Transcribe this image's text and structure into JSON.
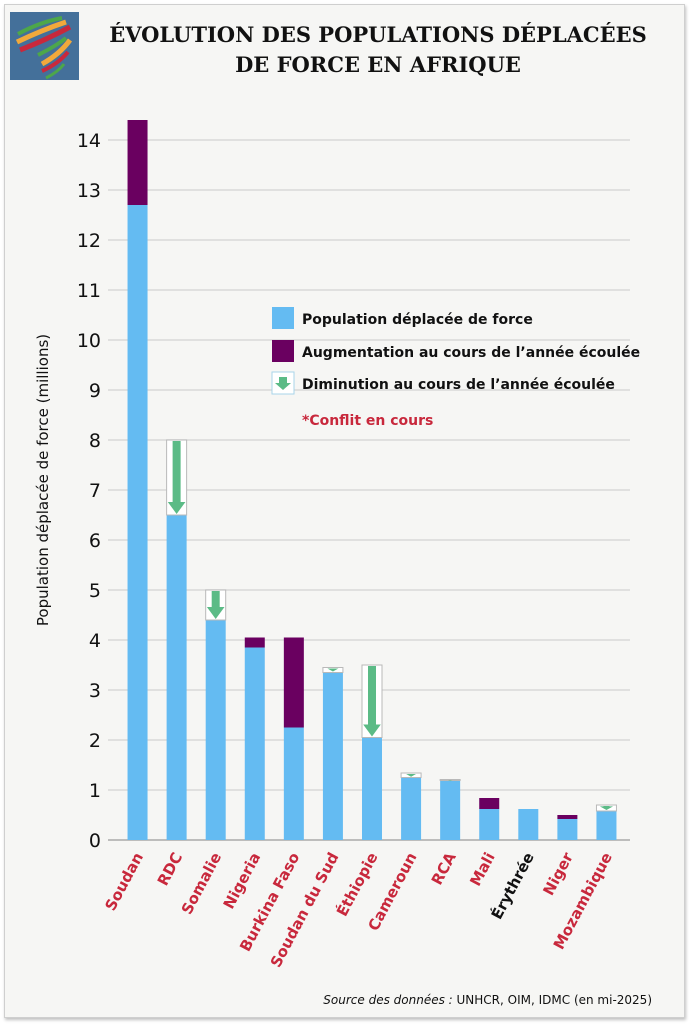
{
  "title_line1": "ÉVOLUTION DES POPULATIONS DÉPLACÉES",
  "title_line2": "DE FORCE EN AFRIQUE",
  "source_label": "Source des données :",
  "source_text": " UNHCR, OIM, IDMC (en mi-2025)",
  "colors": {
    "base": "#64bbf2",
    "increase": "#6a0060",
    "decrease": "#5bbb86",
    "conflict_label": "#c8283c",
    "normal_label": "#111111"
  },
  "chart_data": {
    "type": "bar",
    "stacked": true,
    "ylabel": "Population déplacée de force (millions)",
    "ylim": [
      0,
      14.5
    ],
    "yticks": [
      0,
      1,
      2,
      3,
      4,
      5,
      6,
      7,
      8,
      9,
      10,
      11,
      12,
      13,
      14
    ],
    "grid": true,
    "legend_placement": "center-right",
    "legend": [
      "Population déplacée de force",
      "Augmentation au cours de l’année écoulée",
      "Diminution au cours de l’année écoulée"
    ],
    "annotation": "*Conflit en cours",
    "categories": [
      "Soudan",
      "RDC",
      "Somalie",
      "Nigeria",
      "Burkina Faso",
      "Soudan du Sud",
      "Éthiopie",
      "Cameroun",
      "RCA",
      "Mali",
      "Érythrée",
      "Niger",
      "Mozambique"
    ],
    "conflict": [
      true,
      true,
      true,
      true,
      true,
      true,
      true,
      true,
      true,
      true,
      false,
      true,
      true
    ],
    "current": [
      12.7,
      6.5,
      4.4,
      3.85,
      2.25,
      3.35,
      2.05,
      1.25,
      1.19,
      0.62,
      0.62,
      0.42,
      0.58
    ],
    "previous": [
      14.4,
      8.0,
      5.0,
      4.05,
      4.05,
      3.45,
      3.5,
      1.34,
      1.21,
      0.84,
      0.62,
      0.5,
      0.7
    ]
  }
}
